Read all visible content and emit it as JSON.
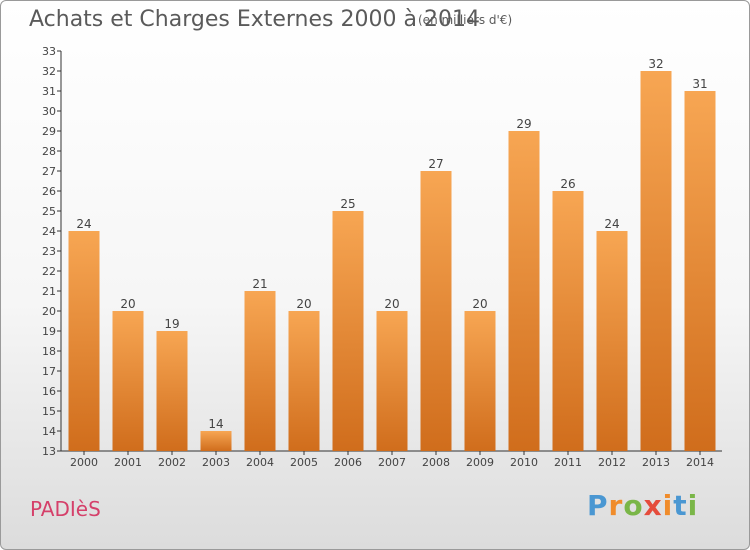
{
  "header": {
    "title": "Achats et Charges Externes 2000 à 2014",
    "unit": "(en milliers d'€)"
  },
  "footer": {
    "commune": "PADIèS",
    "logo": [
      "P",
      "r",
      "o",
      "x",
      "i",
      "t",
      "i"
    ]
  },
  "colors": {
    "bar_light": "#f7a653",
    "bar_dark": "#d06d1c",
    "commune": "#d5406a",
    "logo": [
      "#4a97d2",
      "#f08c2b",
      "#7ab648",
      "#e54c3c",
      "#f08c2b",
      "#4a97d2",
      "#7ab648"
    ]
  },
  "chart_data": {
    "type": "bar",
    "title": "Achats et Charges Externes 2000 à 2014",
    "subtitle": "(en milliers d'€)",
    "xlabel": "",
    "ylabel": "",
    "categories": [
      "2000",
      "2001",
      "2002",
      "2003",
      "2004",
      "2005",
      "2006",
      "2007",
      "2008",
      "2009",
      "2010",
      "2011",
      "2012",
      "2013",
      "2014"
    ],
    "values": [
      24,
      20,
      19,
      14,
      21,
      20,
      25,
      20,
      27,
      20,
      29,
      26,
      24,
      32,
      31
    ],
    "ylim": [
      13,
      33
    ],
    "yticks": [
      13,
      14,
      15,
      16,
      17,
      18,
      19,
      20,
      21,
      22,
      23,
      24,
      25,
      26,
      27,
      28,
      29,
      30,
      31,
      32,
      33
    ],
    "grid": false,
    "legend": "none"
  }
}
